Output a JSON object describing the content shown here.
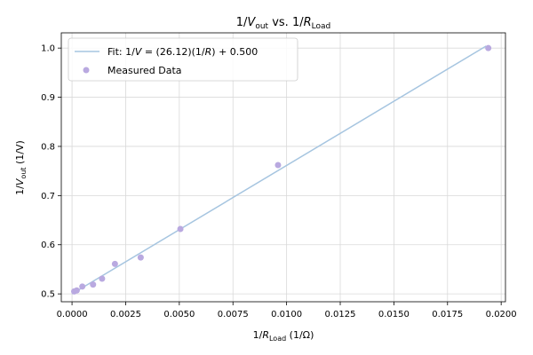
{
  "chart_data": {
    "type": "scatter",
    "title": {
      "base": "1/",
      "var": "V",
      "sub": "out",
      "mid": " vs. 1/",
      "var2": "R",
      "sub2": "Load"
    },
    "xlabel": {
      "base": "1/",
      "var": "R",
      "sub": "Load",
      "unit": " (1/Ω)"
    },
    "ylabel": {
      "base": "1/",
      "var": "V",
      "sub": "out",
      "unit": " (1/V)"
    },
    "xlim": [
      -0.0005,
      0.0202
    ],
    "ylim": [
      0.484,
      1.031
    ],
    "xticks": [
      0.0,
      0.0025,
      0.005,
      0.0075,
      0.01,
      0.0125,
      0.015,
      0.0175,
      0.02
    ],
    "xtick_labels": [
      "0.0000",
      "0.0025",
      "0.0050",
      "0.0075",
      "0.0100",
      "0.0125",
      "0.0150",
      "0.0175",
      "0.0200"
    ],
    "yticks": [
      0.5,
      0.6,
      0.7,
      0.8,
      0.9,
      1.0
    ],
    "ytick_labels": [
      "0.5",
      "0.6",
      "0.7",
      "0.8",
      "0.9",
      "1.0"
    ],
    "grid": true,
    "legend_position": "top-left",
    "series": [
      {
        "name": "Fit",
        "kind": "line",
        "legend": {
          "prefix": "Fit: 1/",
          "var": "V",
          "eq": " = (26.12)(1/",
          "var2": "R",
          "tail": ") + 0.500"
        },
        "slope": 26.12,
        "intercept": 0.5,
        "x_range": [
          0.0,
          0.0193
        ],
        "color": "#a6c5e0"
      },
      {
        "name": "Measured Data",
        "kind": "scatter",
        "legend": "Measured Data",
        "color": "#b9a9e0",
        "x": [
          0.0001,
          0.00022,
          0.00048,
          0.00098,
          0.0014,
          0.002,
          0.0032,
          0.00505,
          0.0096,
          0.0194
        ],
        "y": [
          0.505,
          0.507,
          0.515,
          0.519,
          0.531,
          0.561,
          0.574,
          0.632,
          0.762,
          1.0
        ]
      }
    ]
  }
}
